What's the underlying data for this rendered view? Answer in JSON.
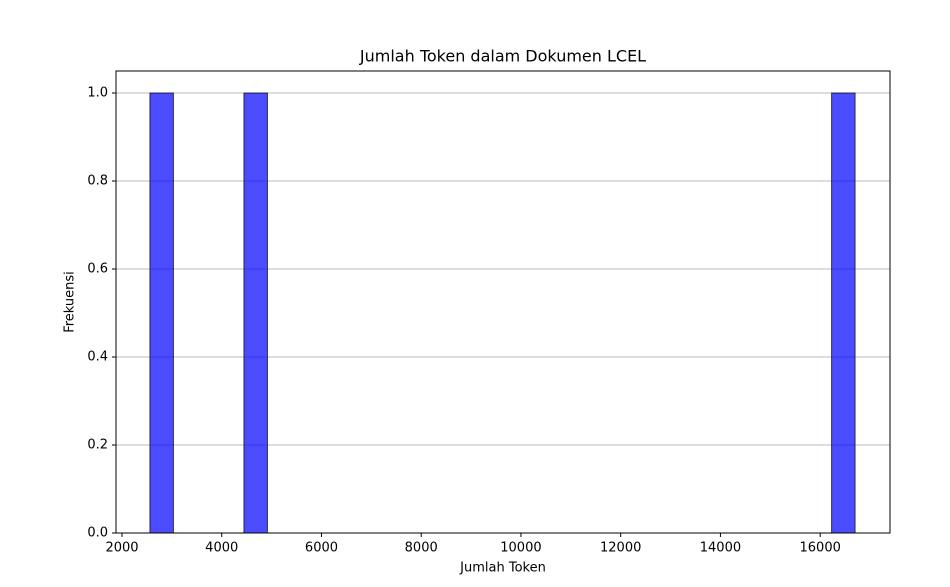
{
  "chart_data": {
    "type": "histogram",
    "title": "Jumlah Token dalam Dokumen LCEL",
    "x_label": "Jumlah Token",
    "y_label": "Frekuensi",
    "bins": [
      2560,
      3031.3,
      3502.7,
      3974,
      4445.3,
      4916.7,
      5388,
      5859.3,
      6330.7,
      6802,
      7273.3,
      7744.7,
      8216,
      8687.3,
      9158.7,
      9630,
      10101.3,
      10572.7,
      11044,
      11515.3,
      11986.7,
      12458,
      12929.3,
      13400.7,
      13872,
      14343.3,
      14814.7,
      15286,
      15757.3,
      16228.7,
      16700
    ],
    "values": [
      1,
      0,
      0,
      0,
      1,
      0,
      0,
      0,
      0,
      0,
      0,
      0,
      0,
      0,
      0,
      0,
      0,
      0,
      0,
      0,
      0,
      0,
      0,
      0,
      0,
      0,
      0,
      0,
      0,
      1
    ],
    "color": "#0000ff",
    "xlim": [
      1880,
      17400
    ],
    "xticks": [
      2000,
      4000,
      6000,
      8000,
      10000,
      12000,
      14000,
      16000
    ],
    "ylim": [
      0,
      1.05
    ],
    "yticks": [
      {
        "value": 0,
        "label": "0.0"
      },
      {
        "value": 0.2,
        "label": "0.2"
      },
      {
        "value": 0.4,
        "label": "0.4"
      },
      {
        "value": 0.6,
        "label": "0.6"
      },
      {
        "value": 0.8,
        "label": "0.8"
      },
      {
        "value": 1,
        "label": "1.0"
      }
    ],
    "grid": true
  }
}
